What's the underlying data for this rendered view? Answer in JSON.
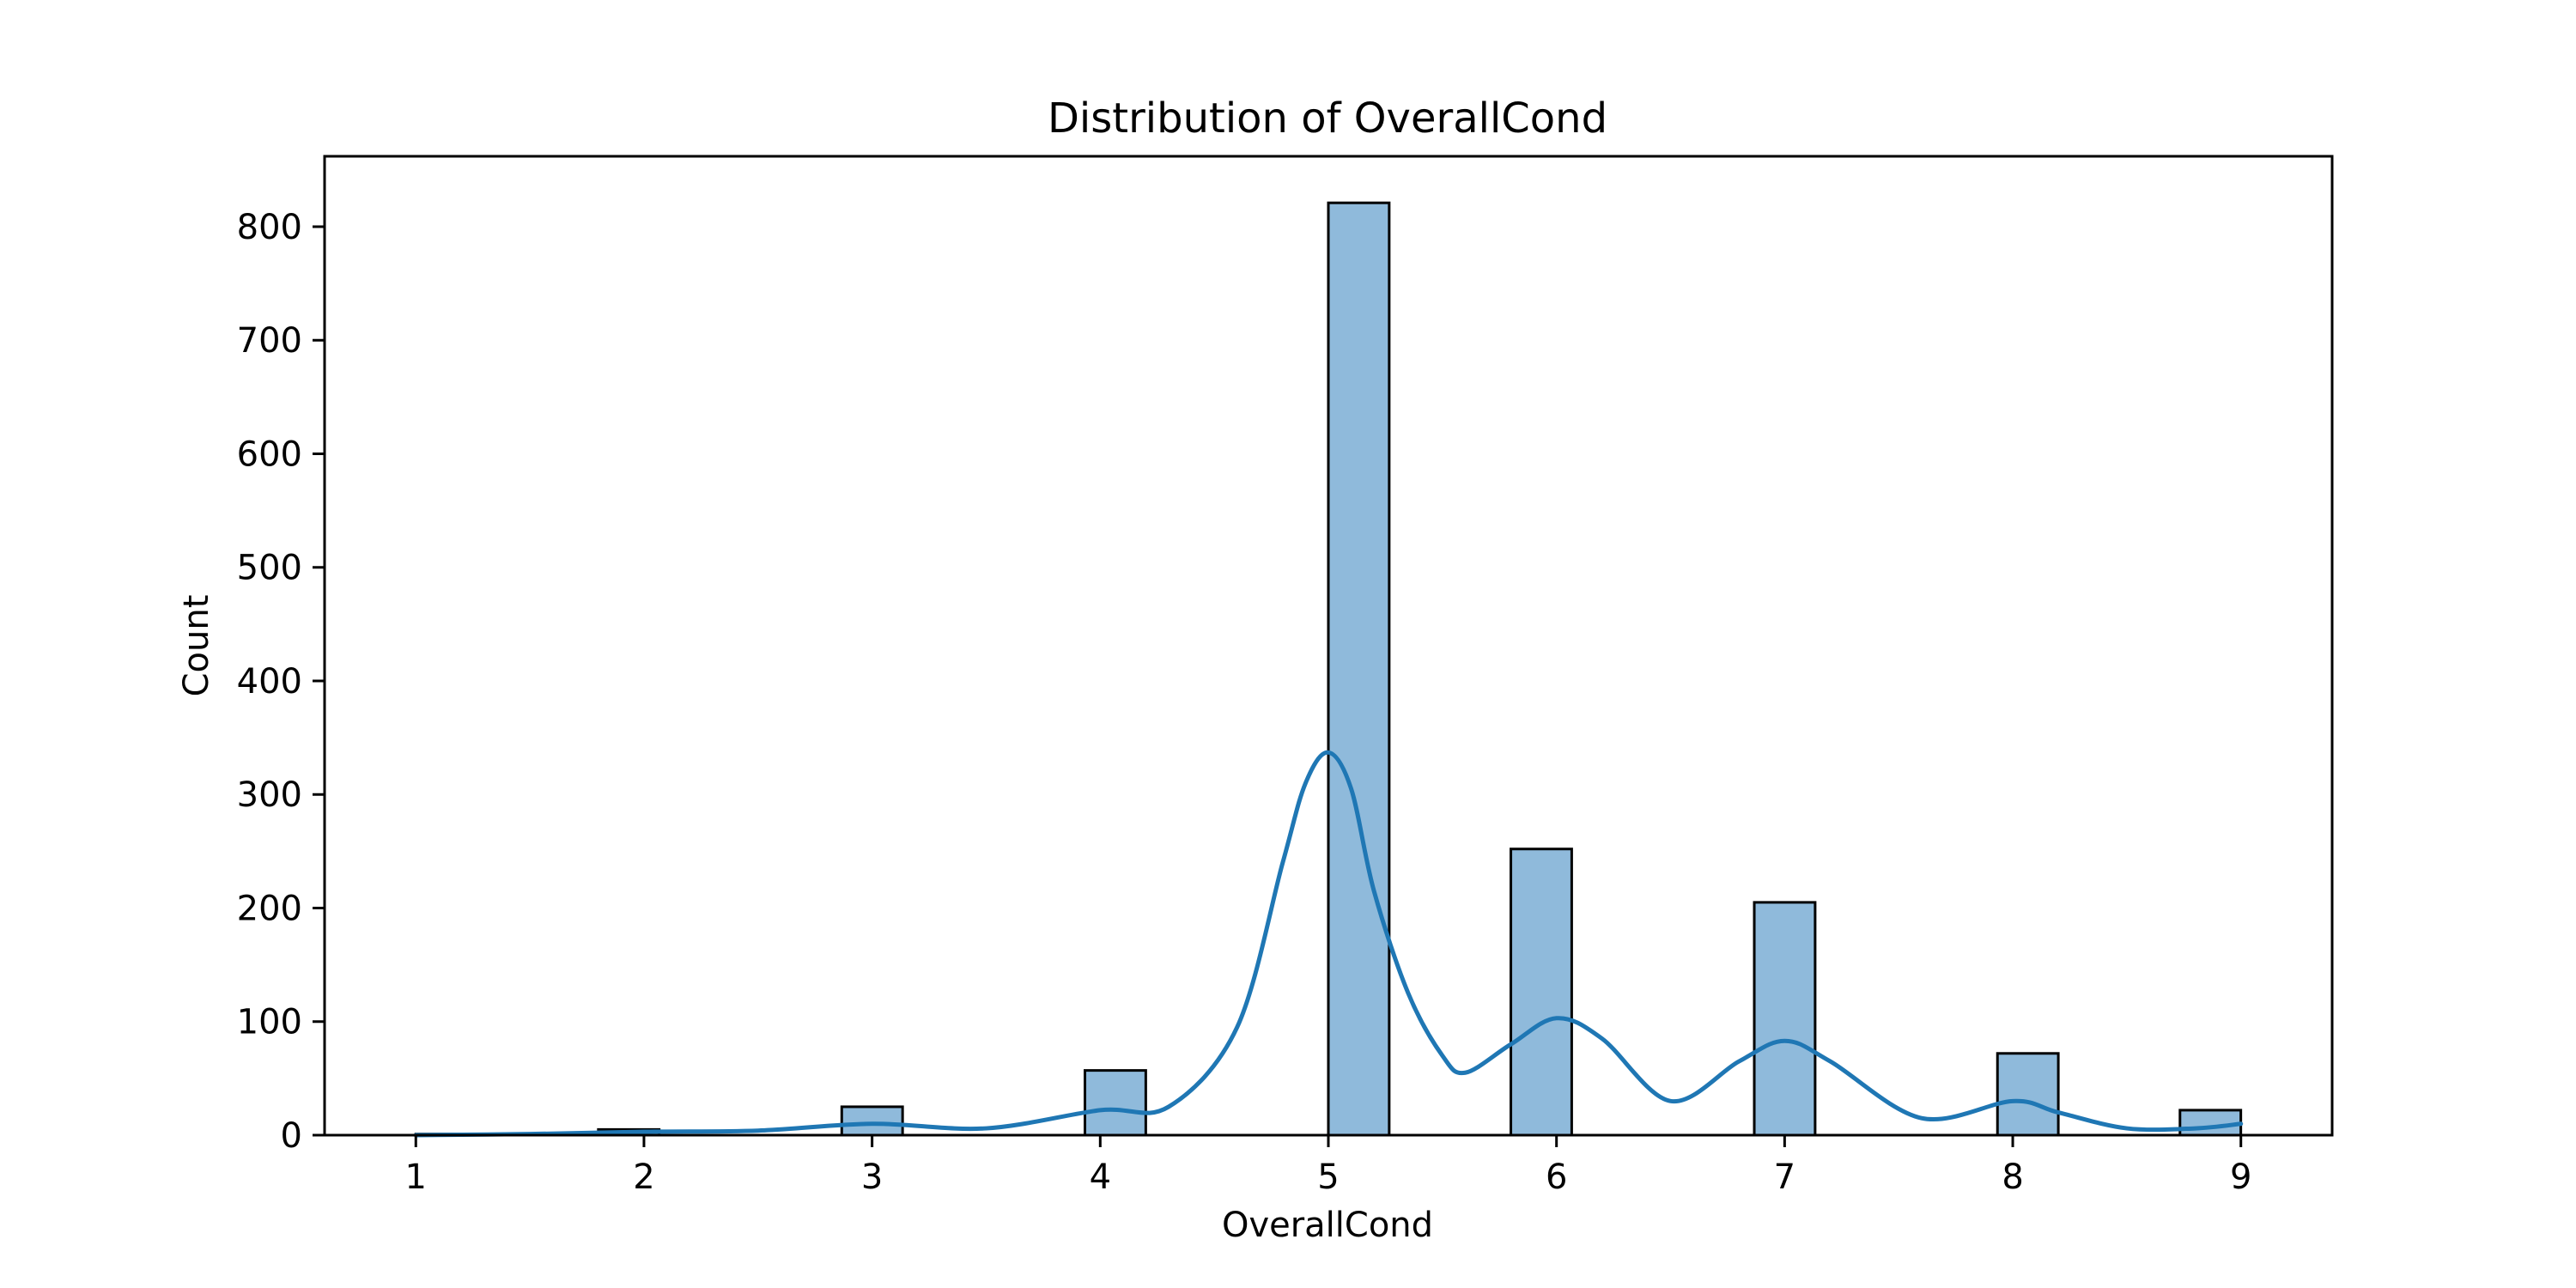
{
  "chart_data": {
    "type": "bar",
    "title": "Distribution of OverallCond",
    "xlabel": "OverallCond",
    "ylabel": "Count",
    "xlim": [
      0.6,
      9.4
    ],
    "ylim": [
      0,
      862
    ],
    "xticks": [
      1,
      2,
      3,
      4,
      5,
      6,
      7,
      8,
      9
    ],
    "yticks": [
      0,
      100,
      200,
      300,
      400,
      500,
      600,
      700,
      800
    ],
    "bin_width": 0.2667,
    "bins": [
      {
        "start": 1.0,
        "value": 1
      },
      {
        "start": 1.8,
        "value": 5
      },
      {
        "start": 2.867,
        "value": 25
      },
      {
        "start": 3.933,
        "value": 57
      },
      {
        "start": 5.0,
        "value": 821
      },
      {
        "start": 5.8,
        "value": 252
      },
      {
        "start": 6.867,
        "value": 205
      },
      {
        "start": 7.933,
        "value": 72
      },
      {
        "start": 8.733,
        "value": 22
      }
    ],
    "kde": {
      "name": "KDE",
      "x": [
        1.0,
        1.5,
        2.0,
        2.5,
        3.0,
        3.5,
        4.0,
        4.3,
        4.6,
        4.8,
        4.9,
        5.0,
        5.1,
        5.2,
        5.35,
        5.5,
        5.6,
        5.8,
        6.0,
        6.2,
        6.5,
        6.8,
        7.0,
        7.2,
        7.6,
        8.0,
        8.2,
        8.5,
        8.8,
        9.0
      ],
      "y": [
        0,
        1,
        3,
        4,
        10,
        6,
        22,
        25,
        95,
        240,
        310,
        337,
        305,
        215,
        125,
        70,
        55,
        80,
        103,
        85,
        30,
        65,
        83,
        65,
        15,
        30,
        20,
        6,
        6,
        10
      ]
    },
    "colors": {
      "bar_fill": "#8fbadb",
      "bar_edge": "#000000",
      "kde_line": "#1f77b4",
      "axes": "#000000"
    },
    "grid": false,
    "legend": "none"
  }
}
